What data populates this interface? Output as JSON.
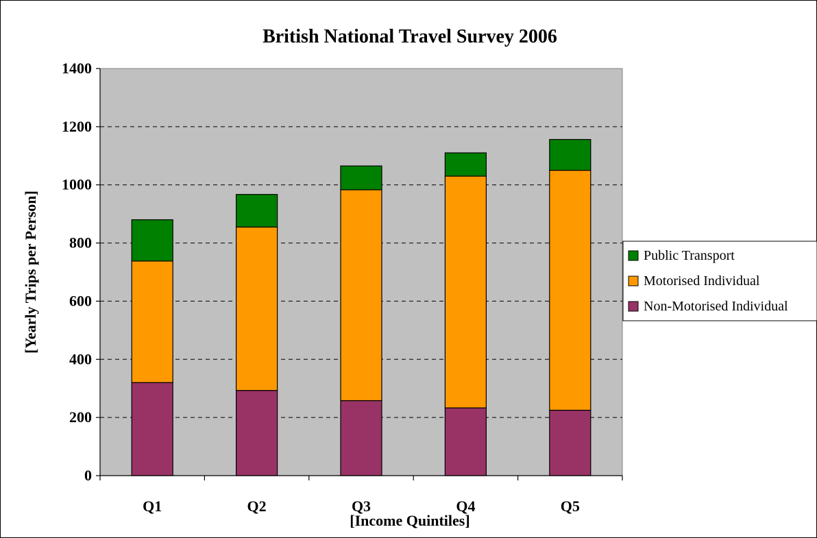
{
  "chart_data": {
    "type": "bar",
    "stacked": true,
    "title": "British National Travel Survey 2006",
    "xlabel": "[Income Quintiles]",
    "ylabel": "[Yearly Trips per Person]",
    "categories": [
      "Q1",
      "Q2",
      "Q3",
      "Q4",
      "Q5"
    ],
    "ylim": [
      0,
      1400
    ],
    "yticks": [
      0,
      200,
      400,
      600,
      800,
      1000,
      1200,
      1400
    ],
    "grid": true,
    "legend_position": "right",
    "plot_background": "#c0c0c0",
    "series": [
      {
        "name": "Non-Motorised Individual",
        "color": "#993366",
        "values": [
          320,
          293,
          258,
          233,
          225
        ]
      },
      {
        "name": "Motorised Individual",
        "color": "#ff9900",
        "values": [
          418,
          562,
          725,
          797,
          825
        ]
      },
      {
        "name": "Public Transport",
        "color": "#008000",
        "values": [
          142,
          112,
          82,
          80,
          106
        ]
      }
    ],
    "legend_order": [
      "Public Transport",
      "Motorised Individual",
      "Non-Motorised Individual"
    ]
  }
}
